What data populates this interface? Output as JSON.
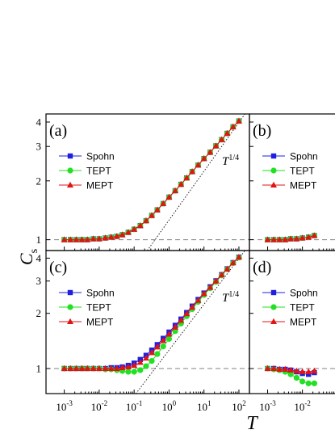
{
  "figure": {
    "ylabel_main": "C",
    "ylabel_sub": "s",
    "xlabel": "T",
    "x_tick_labels": [
      "10",
      "10",
      "10",
      "10",
      "10",
      "10"
    ],
    "x_tick_exponents": [
      "-3",
      "-2",
      "-1",
      "0",
      "1",
      "2"
    ],
    "y_tick_labels": [
      "1",
      "2",
      "3",
      "4"
    ]
  },
  "colors": {
    "spohn": "#1f1fe0",
    "tept": "#22e022",
    "mept": "#e01414",
    "axis": "#000000",
    "reference_dashed": "#808080"
  },
  "chart_data": [
    {
      "panel": "(a)",
      "type": "line",
      "xscale": "log",
      "yscale": "log",
      "xlim": [
        0.0003,
        200
      ],
      "ylim": [
        0.88,
        4.4
      ],
      "annotation": "T",
      "annotation_exp": "1/4",
      "reference_hline": 1,
      "reference_powerlaw": {
        "exponent": 0.25,
        "y_at_T1": 1.26
      },
      "legend": [
        "Spohn",
        "TEPT",
        "MEPT"
      ],
      "x": [
        0.001,
        0.0015,
        0.0022,
        0.0032,
        0.0046,
        0.0068,
        0.01,
        0.015,
        0.022,
        0.032,
        0.046,
        0.068,
        0.1,
        0.15,
        0.22,
        0.32,
        0.46,
        0.68,
        1,
        1.5,
        2.2,
        3.2,
        4.6,
        6.8,
        10,
        15,
        22,
        32,
        46,
        68,
        100
      ],
      "series": [
        {
          "name": "Spohn",
          "marker": "square",
          "values": [
            1.0,
            1.0,
            1.0,
            1.0,
            1.0,
            1.01,
            1.01,
            1.02,
            1.03,
            1.04,
            1.06,
            1.09,
            1.13,
            1.18,
            1.25,
            1.33,
            1.42,
            1.53,
            1.65,
            1.78,
            1.92,
            2.07,
            2.23,
            2.41,
            2.6,
            2.8,
            3.02,
            3.25,
            3.5,
            3.78,
            4.05
          ]
        },
        {
          "name": "TEPT",
          "marker": "circle",
          "values": [
            1.0,
            1.0,
            1.0,
            1.0,
            1.0,
            1.01,
            1.01,
            1.02,
            1.03,
            1.04,
            1.06,
            1.09,
            1.13,
            1.18,
            1.25,
            1.33,
            1.42,
            1.53,
            1.65,
            1.78,
            1.92,
            2.07,
            2.23,
            2.41,
            2.6,
            2.8,
            3.02,
            3.25,
            3.5,
            3.78,
            4.05
          ]
        },
        {
          "name": "MEPT",
          "marker": "triangle",
          "values": [
            1.0,
            1.0,
            1.0,
            1.0,
            1.0,
            1.01,
            1.01,
            1.02,
            1.03,
            1.04,
            1.06,
            1.09,
            1.13,
            1.18,
            1.25,
            1.33,
            1.42,
            1.53,
            1.65,
            1.78,
            1.92,
            2.07,
            2.23,
            2.41,
            2.6,
            2.8,
            3.02,
            3.25,
            3.5,
            3.78,
            4.05
          ]
        }
      ]
    },
    {
      "panel": "(b)",
      "type": "line",
      "xscale": "log",
      "yscale": "log",
      "xlim": [
        0.0003,
        200
      ],
      "ylim": [
        0.88,
        4.4
      ],
      "reference_hline": 1,
      "legend": [
        "Spohn",
        "TEPT",
        "MEPT"
      ],
      "x": [
        0.001,
        0.0015,
        0.0022,
        0.0032,
        0.0046,
        0.0068,
        0.01,
        0.015,
        0.022
      ],
      "series": [
        {
          "name": "Spohn",
          "marker": "square",
          "values": [
            1.0,
            1.0,
            1.0,
            1.0,
            1.01,
            1.01,
            1.02,
            1.03,
            1.05
          ]
        },
        {
          "name": "TEPT",
          "marker": "circle",
          "values": [
            1.0,
            1.0,
            1.0,
            1.0,
            1.01,
            1.01,
            1.02,
            1.03,
            1.05
          ]
        },
        {
          "name": "MEPT",
          "marker": "triangle",
          "values": [
            1.0,
            1.0,
            1.0,
            1.0,
            1.01,
            1.01,
            1.02,
            1.03,
            1.05
          ]
        }
      ]
    },
    {
      "panel": "(c)",
      "type": "line",
      "xscale": "log",
      "yscale": "log",
      "xlim": [
        0.0003,
        200
      ],
      "ylim": [
        0.73,
        4.4
      ],
      "annotation": "T",
      "annotation_exp": "1/4",
      "reference_hline": 1,
      "reference_powerlaw": {
        "exponent": 0.25,
        "y_at_T1": 1.26
      },
      "legend": [
        "Spohn",
        "TEPT",
        "MEPT"
      ],
      "x": [
        0.001,
        0.0015,
        0.0022,
        0.0032,
        0.0046,
        0.0068,
        0.01,
        0.015,
        0.022,
        0.032,
        0.046,
        0.068,
        0.1,
        0.15,
        0.22,
        0.32,
        0.46,
        0.68,
        1,
        1.5,
        2.2,
        3.2,
        4.6,
        6.8,
        10,
        15,
        22,
        32,
        46,
        68,
        100
      ],
      "series": [
        {
          "name": "Spohn",
          "marker": "square",
          "values": [
            1.0,
            1.0,
            1.0,
            1.0,
            1.0,
            1.0,
            1.0,
            1.0,
            1.01,
            1.01,
            1.02,
            1.04,
            1.07,
            1.12,
            1.18,
            1.26,
            1.35,
            1.46,
            1.58,
            1.72,
            1.86,
            2.02,
            2.19,
            2.38,
            2.58,
            2.79,
            3.01,
            3.25,
            3.5,
            3.78,
            4.05
          ]
        },
        {
          "name": "TEPT",
          "marker": "circle",
          "values": [
            1.0,
            1.0,
            1.0,
            1.0,
            1.0,
            1.0,
            1.0,
            0.99,
            0.99,
            0.98,
            0.97,
            0.96,
            0.96,
            0.98,
            1.03,
            1.1,
            1.2,
            1.32,
            1.45,
            1.6,
            1.76,
            1.93,
            2.11,
            2.31,
            2.52,
            2.74,
            2.97,
            3.22,
            3.48,
            3.76,
            4.03
          ]
        },
        {
          "name": "MEPT",
          "marker": "triangle",
          "values": [
            1.0,
            1.0,
            1.0,
            1.0,
            1.0,
            1.0,
            1.0,
            1.0,
            1.0,
            1.0,
            1.01,
            1.02,
            1.04,
            1.08,
            1.14,
            1.22,
            1.31,
            1.42,
            1.54,
            1.68,
            1.83,
            1.99,
            2.16,
            2.35,
            2.56,
            2.77,
            3.0,
            3.24,
            3.49,
            3.77,
            4.05
          ]
        }
      ]
    },
    {
      "panel": "(d)",
      "type": "line",
      "xscale": "log",
      "yscale": "log",
      "xlim": [
        0.0003,
        200
      ],
      "ylim": [
        0.73,
        4.4
      ],
      "reference_hline": 1,
      "legend": [
        "Spohn",
        "TEPT",
        "MEPT"
      ],
      "x": [
        0.001,
        0.0015,
        0.0022,
        0.0032,
        0.0046,
        0.0068,
        0.01,
        0.015,
        0.022
      ],
      "series": [
        {
          "name": "Spohn",
          "marker": "square",
          "values": [
            1.0,
            1.0,
            0.99,
            0.99,
            0.98,
            0.96,
            0.94,
            0.93,
            0.95
          ]
        },
        {
          "name": "TEPT",
          "marker": "circle",
          "values": [
            1.0,
            0.99,
            0.98,
            0.96,
            0.93,
            0.89,
            0.85,
            0.83,
            0.83
          ]
        },
        {
          "name": "MEPT",
          "marker": "triangle",
          "values": [
            1.0,
            1.0,
            0.99,
            0.99,
            0.98,
            0.97,
            0.96,
            0.96,
            0.97
          ]
        }
      ]
    }
  ]
}
